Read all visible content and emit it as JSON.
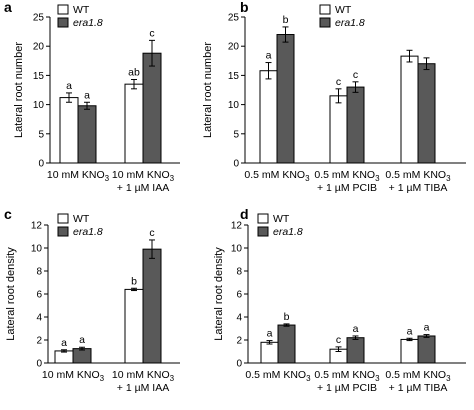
{
  "chart_data": [
    {
      "panel": "a",
      "type": "bar",
      "ylabel": "Lateral root number",
      "ylim": [
        0,
        25
      ],
      "yticks": [
        0,
        5,
        10,
        15,
        20,
        25
      ],
      "categories": [
        {
          "line1": "10 mM KNO",
          "sub1": "3",
          "line2": ""
        },
        {
          "line1": "10 mM KNO",
          "sub1": "3",
          "line2": "+ 1 µM IAA"
        }
      ],
      "series": [
        {
          "name": "WT",
          "color": "#ffffff",
          "values": [
            11.2,
            13.5
          ],
          "errors": [
            0.8,
            0.8
          ],
          "letters": [
            "a",
            "ab"
          ]
        },
        {
          "name": "era1.8",
          "color": "#595959",
          "values": [
            9.8,
            18.8
          ],
          "errors": [
            0.6,
            2.2
          ],
          "letters": [
            "a",
            "c"
          ]
        }
      ],
      "legend": "top-left"
    },
    {
      "panel": "b",
      "type": "bar",
      "ylabel": "Lateral root number",
      "ylim": [
        0,
        25
      ],
      "yticks": [
        0,
        5,
        10,
        15,
        20,
        25
      ],
      "categories": [
        {
          "line1": "0.5 mM KNO",
          "sub1": "3",
          "line2": ""
        },
        {
          "line1": "0.5 mM KNO",
          "sub1": "3",
          "line2": "+ 1 µM PCIB"
        },
        {
          "line1": "0.5 mM KNO",
          "sub1": "3",
          "line2": "+ 1 µM TIBA"
        }
      ],
      "series": [
        {
          "name": "WT",
          "color": "#ffffff",
          "values": [
            15.8,
            11.5,
            18.3
          ],
          "errors": [
            1.4,
            1.2,
            1.0
          ],
          "letters": [
            "a",
            "c",
            ""
          ]
        },
        {
          "name": "era1.8",
          "color": "#595959",
          "values": [
            22.0,
            13.0,
            17.0
          ],
          "errors": [
            1.3,
            0.9,
            1.0
          ],
          "letters": [
            "b",
            "c",
            ""
          ]
        }
      ],
      "legend": "top-right"
    },
    {
      "panel": "c",
      "type": "bar",
      "ylabel": "Lateral root density",
      "ylim": [
        0,
        12
      ],
      "yticks": [
        0,
        2,
        4,
        6,
        8,
        10,
        12
      ],
      "categories": [
        {
          "line1": "10 mM KNO",
          "sub1": "3",
          "line2": ""
        },
        {
          "line1": "10 mM KNO",
          "sub1": "3",
          "line2": "+ 1 µM IAA"
        }
      ],
      "series": [
        {
          "name": "WT",
          "color": "#ffffff",
          "values": [
            1.05,
            6.4
          ],
          "errors": [
            0.1,
            0.1
          ],
          "letters": [
            "a",
            "b"
          ]
        },
        {
          "name": "era1.8",
          "color": "#595959",
          "values": [
            1.25,
            9.9
          ],
          "errors": [
            0.12,
            0.8
          ],
          "letters": [
            "a",
            "c"
          ]
        }
      ],
      "legend": "top-left"
    },
    {
      "panel": "d",
      "type": "bar",
      "ylabel": "Lateral root density",
      "ylim": [
        0,
        12
      ],
      "yticks": [
        0,
        2,
        4,
        6,
        8,
        10,
        12
      ],
      "categories": [
        {
          "line1": "0.5 mM KNO",
          "sub1": "3",
          "line2": ""
        },
        {
          "line1": "0.5 mM KNO",
          "sub1": "3",
          "line2": "+ 1 µM PCIB"
        },
        {
          "line1": "0.5 mM KNO",
          "sub1": "3",
          "line2": "+ 1 µM TIBA"
        }
      ],
      "series": [
        {
          "name": "WT",
          "color": "#ffffff",
          "values": [
            1.8,
            1.2,
            2.05
          ],
          "errors": [
            0.15,
            0.2,
            0.1
          ],
          "letters": [
            "a",
            "c",
            "a"
          ]
        },
        {
          "name": "era1.8",
          "color": "#595959",
          "values": [
            3.3,
            2.2,
            2.35
          ],
          "errors": [
            0.1,
            0.15,
            0.12
          ],
          "letters": [
            "b",
            "a",
            "a"
          ]
        }
      ],
      "legend": "top-left"
    }
  ]
}
